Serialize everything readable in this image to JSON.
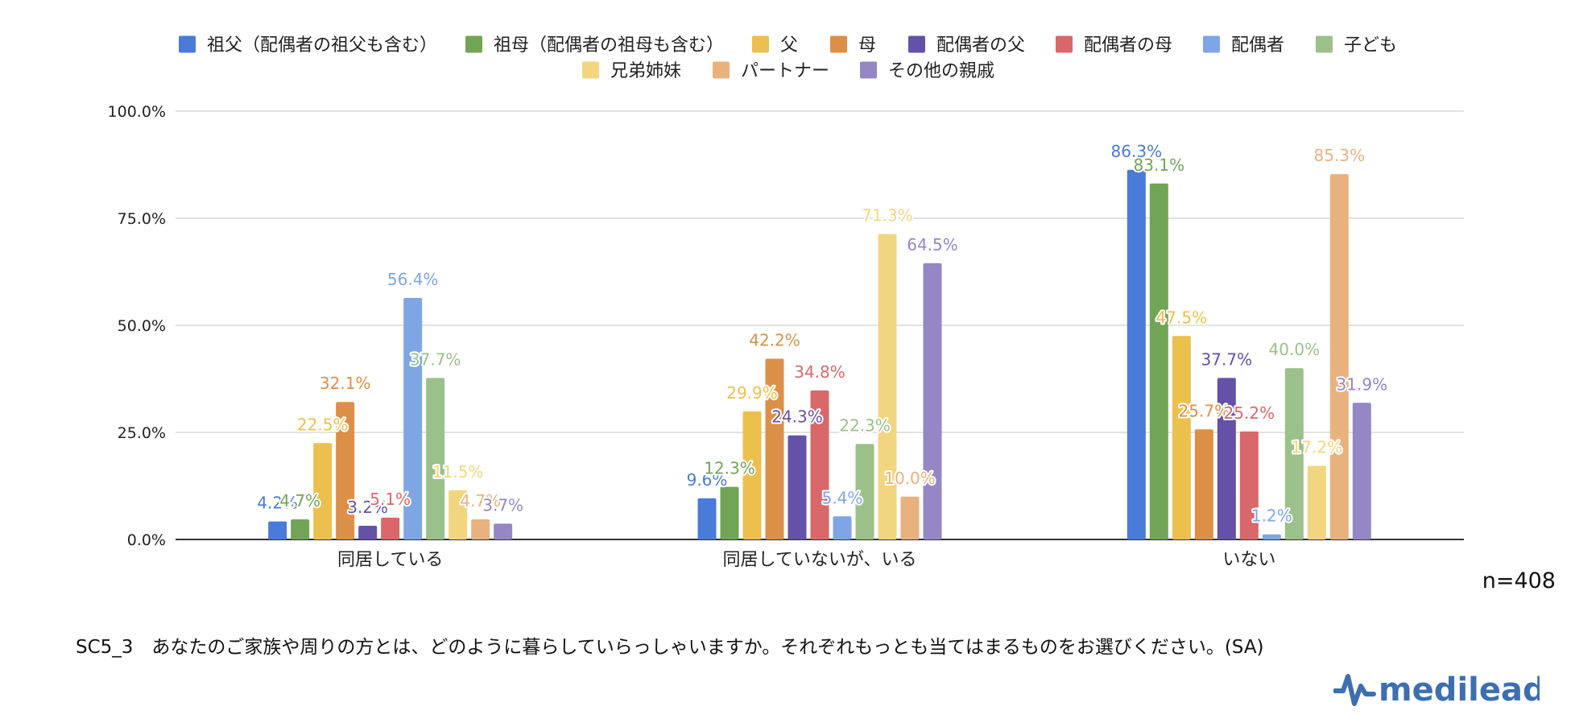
{
  "colors": {
    "grid": "#d0d0d0",
    "axis": "#333333",
    "text": "#222222",
    "series": [
      "#4a7bd8",
      "#72a455",
      "#ecc04d",
      "#dc8f46",
      "#6451a8",
      "#d8686a",
      "#7ea6e4",
      "#9cc08a",
      "#f2d67f",
      "#e8b27e",
      "#9586c6"
    ]
  },
  "chart_data": {
    "type": "bar",
    "categories": [
      "同居している",
      "同居していないが、いる",
      "いない"
    ],
    "series": [
      {
        "name": "祖父（配偶者の祖父も含む）",
        "values": [
          4.2,
          9.6,
          86.3
        ]
      },
      {
        "name": "祖母（配偶者の祖母も含む）",
        "values": [
          4.7,
          12.3,
          83.1
        ]
      },
      {
        "name": "父",
        "values": [
          22.5,
          29.9,
          47.5
        ]
      },
      {
        "name": "母",
        "values": [
          32.1,
          42.2,
          25.7
        ]
      },
      {
        "name": "配偶者の父",
        "values": [
          3.2,
          24.3,
          37.7
        ]
      },
      {
        "name": "配偶者の母",
        "values": [
          5.1,
          34.8,
          25.2
        ]
      },
      {
        "name": "配偶者",
        "values": [
          56.4,
          5.4,
          1.2
        ]
      },
      {
        "name": "子ども",
        "values": [
          37.7,
          22.3,
          40.0
        ]
      },
      {
        "name": "兄弟姉妹",
        "values": [
          11.5,
          71.3,
          17.2
        ]
      },
      {
        "name": "パートナー",
        "values": [
          4.7,
          10.0,
          85.3
        ]
      },
      {
        "name": "その他の親戚",
        "values": [
          3.7,
          64.5,
          31.9
        ]
      }
    ],
    "value_labels": [
      [
        "4.2%",
        "4.7%",
        "22.5%",
        "32.1%",
        "3.2%",
        "5.1%",
        "56.4%",
        "37.7%",
        "11.5%",
        "4.7%",
        "3.7%"
      ],
      [
        "9.6%",
        "12.3%",
        "29.9%",
        "42.2%",
        "24.3%",
        "34.8%",
        "5.4%",
        "22.3%",
        "71.3%",
        "10.0%",
        "64.5%"
      ],
      [
        "86.3%",
        "83.1%",
        "47.5%",
        "25.7%",
        "37.7%",
        "25.2%",
        "1.2%",
        "40.0%",
        "17.2%",
        "85.3%",
        "31.9%"
      ]
    ],
    "ylim": [
      0,
      100
    ],
    "yticks": [
      "0.0%",
      "25.0%",
      "50.0%",
      "75.0%",
      "100.0%"
    ],
    "grid": true,
    "legend_position": "top"
  },
  "sample_size": "n=408",
  "question_text": "SC5_3　あなたのご家族や周りの方とは、どのように暮らしていらっしゃいますか。それぞれもっとも当てはまるものをお選びください。(SA)",
  "logo": {
    "text": "medilead",
    "icon": "pulse-icon",
    "color": "#3d6fb0"
  }
}
